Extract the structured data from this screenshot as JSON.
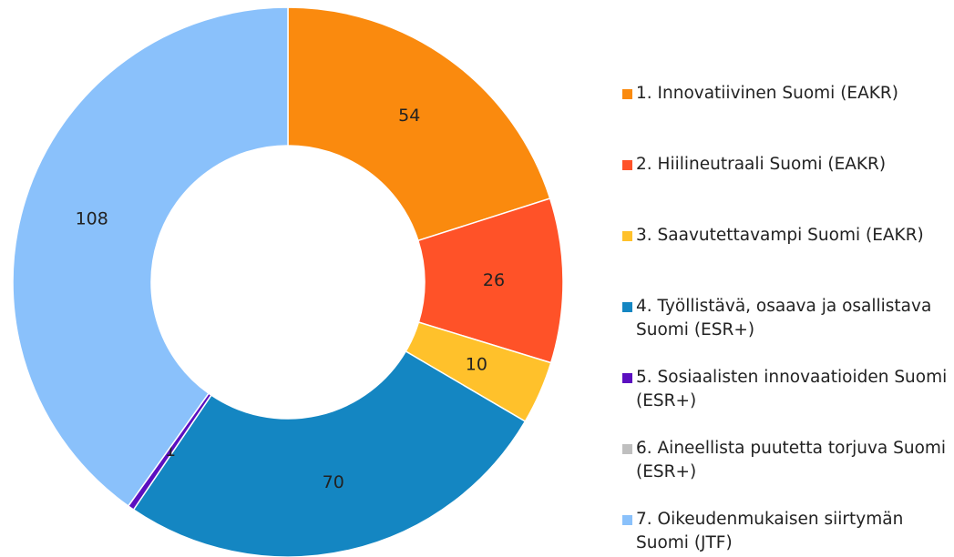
{
  "chart_data": {
    "type": "donut",
    "categories": [
      "1. Innovatiivinen Suomi (EAKR)",
      "2. Hiilineutraali Suomi (EAKR)",
      "3. Saavutettavampi Suomi (EAKR)",
      "4. Työllistävä, osaava ja osallistava Suomi (ESR+)",
      "5. Sosiaalisten innovaatioiden Suomi (ESR+)",
      "6. Aineellista puutetta torjuva Suomi (ESR+)",
      "7. Oikeudenmukaisen siirtymän Suomi (JTF)"
    ],
    "values": [
      54,
      26,
      10,
      70,
      1,
      0,
      108
    ],
    "colors": [
      "#fa8a0e",
      "#ff5228",
      "#ffc12b",
      "#1486c2",
      "#5b0fc0",
      "#bfbfbf",
      "#8ac1fb"
    ],
    "legend": "right"
  }
}
